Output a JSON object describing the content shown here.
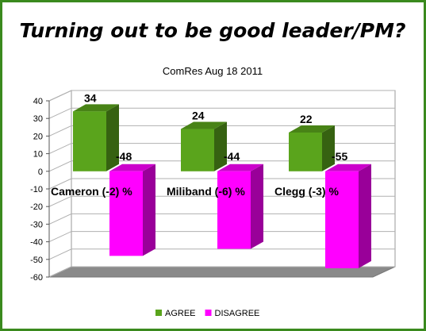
{
  "chart_data": {
    "type": "bar",
    "title": "Turning out to be good leader/PM?",
    "subtitle": "ComRes Aug 18 2011",
    "categories": [
      "Cameron (-2)  %",
      "Miliband (-6) %",
      "Clegg (-3) %"
    ],
    "series": [
      {
        "name": "AGREE",
        "values": [
          34,
          24,
          22
        ],
        "color": "#5aa41c"
      },
      {
        "name": "DISAGREE",
        "values": [
          -48,
          -44,
          -55
        ],
        "color": "#ff00ff"
      }
    ],
    "data_labels": [
      [
        "34",
        "24",
        "22"
      ],
      [
        "-48",
        "-44",
        "-55"
      ]
    ],
    "ylim": [
      -60,
      40
    ],
    "yticks": [
      40,
      30,
      20,
      10,
      0,
      -10,
      -20,
      -30,
      -40,
      -50,
      -60
    ],
    "grid": true,
    "three_d": true,
    "legend_position": "bottom"
  }
}
